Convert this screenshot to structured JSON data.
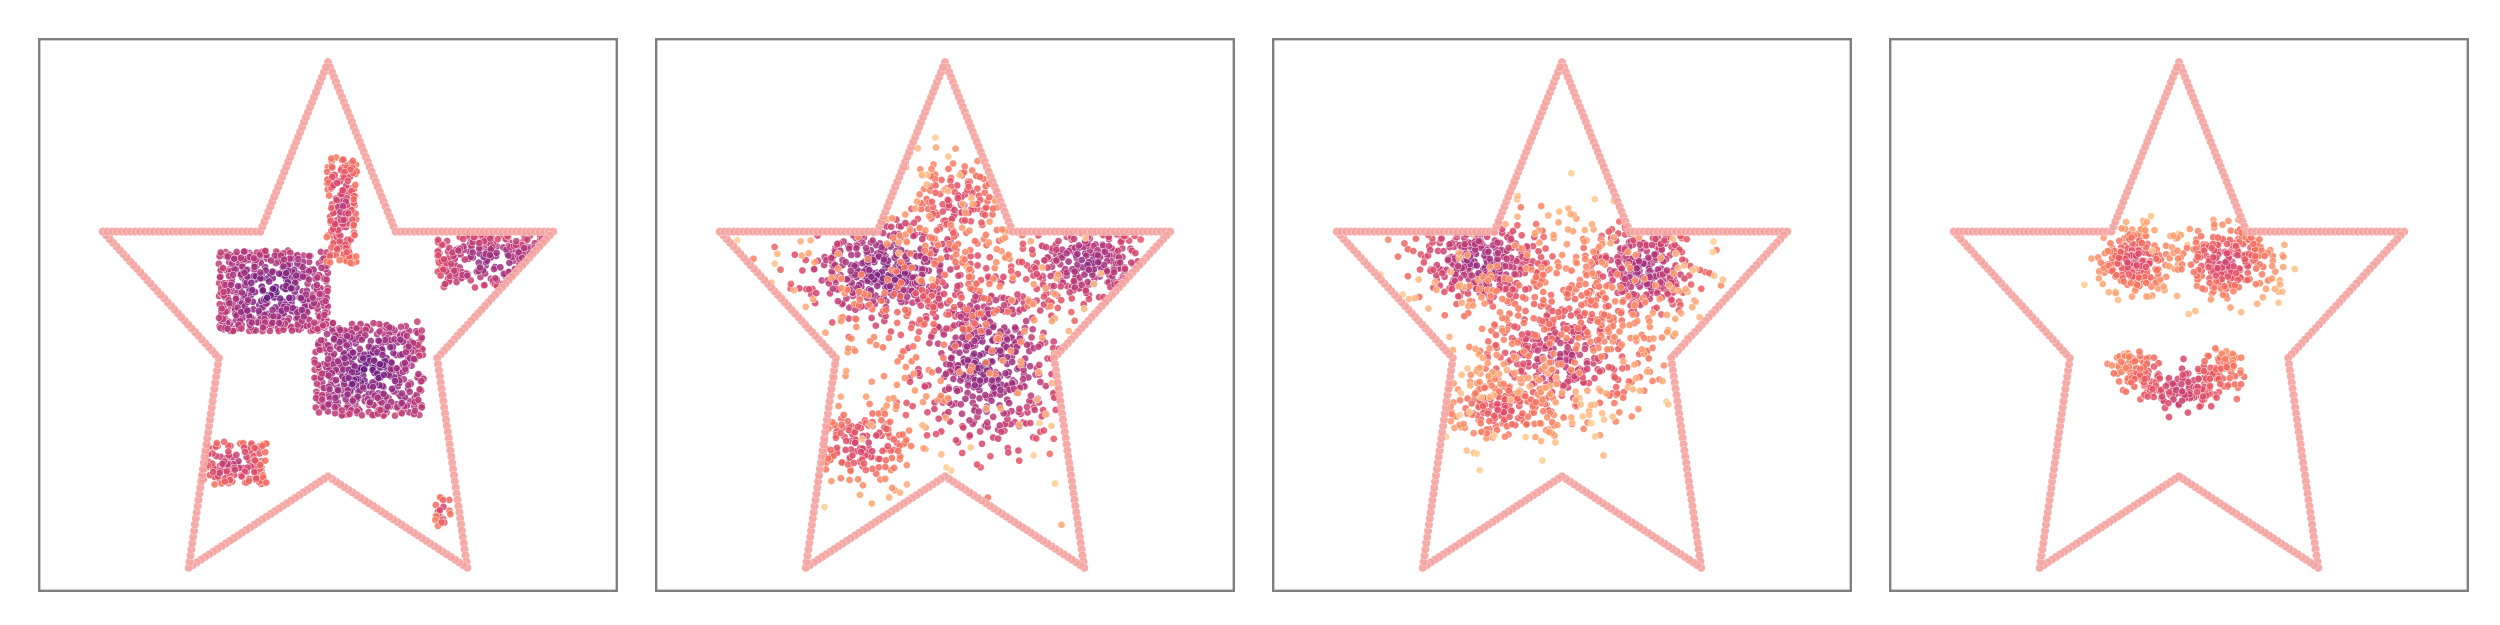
{
  "figure": {
    "panel_count": 4,
    "boundary_color": "#f4a3a0",
    "colormap": [
      "#2d1160",
      "#5f187f",
      "#8c2981",
      "#b73779",
      "#de4968",
      "#f7705c",
      "#fe9f6d",
      "#fecf92"
    ]
  },
  "chart_data": [
    {
      "type": "scatter",
      "title": "",
      "xlabel": "",
      "ylabel": "",
      "grid": false,
      "legend": "none",
      "xlim": [
        -1.06,
        1.06
      ],
      "ylim": [
        -1.0,
        1.06
      ],
      "series": [
        {
          "role": "boundary",
          "shape": "star-outline",
          "vertices": [
            [
              0,
              0.97
            ],
            [
              0.247,
              0.34
            ],
            [
              0.823,
              0.34
            ],
            [
              0.399,
              -0.13
            ],
            [
              0.509,
              -0.91
            ],
            [
              0,
              -0.57
            ],
            [
              -0.509,
              -0.91
            ],
            [
              -0.399,
              -0.13
            ],
            [
              -0.823,
              0.34
            ],
            [
              -0.247,
              0.34
            ]
          ]
        },
        {
          "role": "particles",
          "clusters": [
            {
              "shape": "rect",
              "cx": -0.2,
              "cy": 0.12,
              "w": 0.4,
              "h": 0.3,
              "n": 520,
              "tone": 0.16
            },
            {
              "shape": "rect",
              "cx": 0.15,
              "cy": -0.17,
              "w": 0.4,
              "h": 0.35,
              "n": 520,
              "tone": 0.16
            },
            {
              "shape": "rect",
              "cx": 0.6,
              "cy": 0.23,
              "w": 0.4,
              "h": 0.2,
              "n": 220,
              "tone": 0.26
            },
            {
              "shape": "rect",
              "cx": 0.05,
              "cy": 0.42,
              "w": 0.11,
              "h": 0.4,
              "n": 190,
              "tone": 0.42
            },
            {
              "shape": "rect",
              "cx": -0.35,
              "cy": -0.52,
              "w": 0.25,
              "h": 0.16,
              "n": 140,
              "tone": 0.4
            },
            {
              "shape": "rect",
              "cx": 0.42,
              "cy": -0.7,
              "w": 0.06,
              "h": 0.12,
              "n": 25,
              "tone": 0.45
            }
          ]
        }
      ]
    },
    {
      "type": "scatter",
      "title": "",
      "xlabel": "",
      "ylabel": "",
      "grid": false,
      "legend": "none",
      "xlim": [
        -1.06,
        1.06
      ],
      "ylim": [
        -1.0,
        1.06
      ],
      "series": [
        {
          "role": "boundary",
          "shape": "star-outline",
          "vertices": [
            [
              0,
              0.97
            ],
            [
              0.247,
              0.34
            ],
            [
              0.823,
              0.34
            ],
            [
              0.399,
              -0.13
            ],
            [
              0.509,
              -0.91
            ],
            [
              0,
              -0.57
            ],
            [
              -0.509,
              -0.91
            ],
            [
              -0.399,
              -0.13
            ],
            [
              -0.823,
              0.34
            ],
            [
              -0.247,
              0.34
            ]
          ]
        },
        {
          "role": "particles",
          "clusters": [
            {
              "shape": "blob",
              "cx": -0.22,
              "cy": 0.19,
              "sx": 0.15,
              "sy": 0.1,
              "n": 420,
              "tone": 0.22
            },
            {
              "shape": "blob",
              "cx": 0.15,
              "cy": -0.15,
              "sx": 0.14,
              "sy": 0.17,
              "n": 480,
              "tone": 0.24
            },
            {
              "shape": "blob",
              "cx": 0.05,
              "cy": 0.43,
              "sx": 0.1,
              "sy": 0.1,
              "n": 150,
              "tone": 0.5
            },
            {
              "shape": "blob",
              "cx": 0.52,
              "cy": 0.22,
              "sx": 0.12,
              "sy": 0.08,
              "n": 240,
              "tone": 0.28
            },
            {
              "shape": "blob",
              "cx": -0.3,
              "cy": -0.45,
              "sx": 0.1,
              "sy": 0.08,
              "n": 160,
              "tone": 0.48
            },
            {
              "shape": "blob",
              "cx": -0.05,
              "cy": 0.05,
              "sx": 0.3,
              "sy": 0.25,
              "n": 260,
              "tone": 0.62
            }
          ]
        }
      ]
    },
    {
      "type": "scatter",
      "title": "",
      "xlabel": "",
      "ylabel": "",
      "grid": false,
      "legend": "none",
      "xlim": [
        -1.06,
        1.06
      ],
      "ylim": [
        -1.0,
        1.06
      ],
      "series": [
        {
          "role": "boundary",
          "shape": "star-outline",
          "vertices": [
            [
              0,
              0.97
            ],
            [
              0.247,
              0.34
            ],
            [
              0.823,
              0.34
            ],
            [
              0.399,
              -0.13
            ],
            [
              0.509,
              -0.91
            ],
            [
              0,
              -0.57
            ],
            [
              -0.509,
              -0.91
            ],
            [
              -0.399,
              -0.13
            ],
            [
              -0.823,
              0.34
            ],
            [
              -0.247,
              0.34
            ]
          ]
        },
        {
          "role": "particles",
          "clusters": [
            {
              "shape": "blob",
              "cx": -0.3,
              "cy": 0.23,
              "sx": 0.12,
              "sy": 0.08,
              "n": 320,
              "tone": 0.3
            },
            {
              "shape": "blob",
              "cx": 0.3,
              "cy": 0.2,
              "sx": 0.1,
              "sy": 0.09,
              "n": 300,
              "tone": 0.32
            },
            {
              "shape": "blob",
              "cx": 0.0,
              "cy": -0.12,
              "sx": 0.15,
              "sy": 0.12,
              "n": 340,
              "tone": 0.4
            },
            {
              "shape": "blob",
              "cx": -0.22,
              "cy": -0.32,
              "sx": 0.12,
              "sy": 0.07,
              "n": 200,
              "tone": 0.55
            },
            {
              "shape": "blob",
              "cx": 0.0,
              "cy": 0.05,
              "sx": 0.3,
              "sy": 0.22,
              "n": 320,
              "tone": 0.65
            }
          ]
        }
      ]
    },
    {
      "type": "scatter",
      "title": "",
      "xlabel": "",
      "ylabel": "",
      "grid": false,
      "legend": "none",
      "xlim": [
        -1.06,
        1.06
      ],
      "ylim": [
        -1.0,
        1.06
      ],
      "series": [
        {
          "role": "boundary",
          "shape": "star-outline",
          "vertices": [
            [
              0,
              0.97
            ],
            [
              0.247,
              0.34
            ],
            [
              0.823,
              0.34
            ],
            [
              0.399,
              -0.13
            ],
            [
              0.509,
              -0.91
            ],
            [
              0,
              -0.57
            ],
            [
              -0.509,
              -0.91
            ],
            [
              -0.399,
              -0.13
            ],
            [
              -0.823,
              0.34
            ],
            [
              -0.247,
              0.34
            ]
          ]
        },
        {
          "role": "particles",
          "clusters": [
            {
              "shape": "blob",
              "cx": -0.16,
              "cy": 0.23,
              "sx": 0.07,
              "sy": 0.06,
              "n": 220,
              "tone": 0.5
            },
            {
              "shape": "blob",
              "cx": 0.17,
              "cy": 0.23,
              "sx": 0.09,
              "sy": 0.07,
              "n": 260,
              "tone": 0.48
            },
            {
              "shape": "arc",
              "cx": 0.0,
              "cy": -0.02,
              "r": 0.23,
              "a0": 205,
              "a1": 335,
              "width": 0.04,
              "n": 260,
              "tone": 0.5
            }
          ]
        }
      ]
    }
  ]
}
